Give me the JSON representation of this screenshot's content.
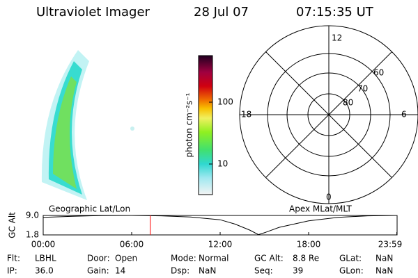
{
  "header": {
    "title": "Ultraviolet Imager",
    "date": "28 Jul 07",
    "time": "07:15:35 UT"
  },
  "colorbar": {
    "label": "photon cm⁻²s⁻¹",
    "ticks": [
      "100",
      "10"
    ]
  },
  "polar": {
    "labels": {
      "top": "12",
      "right": "6",
      "left": "18",
      "bottom": "0",
      "ring_outer": "60",
      "ring_middle": "70",
      "ring_inner": "80"
    }
  },
  "altitude": {
    "y_label": "GC Alt",
    "left_title": "Geographic Lat/Lon",
    "right_title": "Apex MLat/MLT",
    "ylim": [
      1.8,
      9.0
    ],
    "yticks": [
      {
        "value": 9.0,
        "label": "9.0"
      },
      {
        "value": 1.8,
        "label": "1.8"
      }
    ],
    "xlim": [
      0,
      24
    ],
    "xticks": [
      {
        "value": 0,
        "label": "00:00"
      },
      {
        "value": 6,
        "label": "06:00"
      },
      {
        "value": 12,
        "label": "12:00"
      },
      {
        "value": 18,
        "label": "18:00"
      },
      {
        "value": 23.98,
        "label": "23:59"
      }
    ],
    "hours": [
      0,
      2,
      4,
      6,
      8,
      10,
      12,
      13,
      14,
      14.6,
      15,
      16,
      18,
      20,
      22,
      23.98
    ],
    "alt": [
      8.3,
      8.7,
      8.95,
      9.0,
      8.85,
      8.4,
      7.4,
      5.8,
      3.6,
      1.9,
      2.6,
      4.6,
      7.0,
      8.3,
      8.85,
      9.0
    ],
    "marker_hour": 7.26,
    "marker_color": "#ff0000"
  },
  "info": {
    "rows": [
      [
        [
          "Flt:",
          "LBHL"
        ],
        [
          "Door:",
          "Open"
        ],
        [
          "Mode:",
          "Normal"
        ],
        [
          "GC Alt:",
          "8.8 Re"
        ],
        [
          "GLat:",
          "NaN"
        ]
      ],
      [
        [
          "IP:",
          "36.0"
        ],
        [
          "Gain:",
          "14"
        ],
        [
          "Dsp:",
          "NaN"
        ],
        [
          "Seq:",
          "39"
        ],
        [
          "GLon:",
          "NaN"
        ]
      ]
    ]
  }
}
